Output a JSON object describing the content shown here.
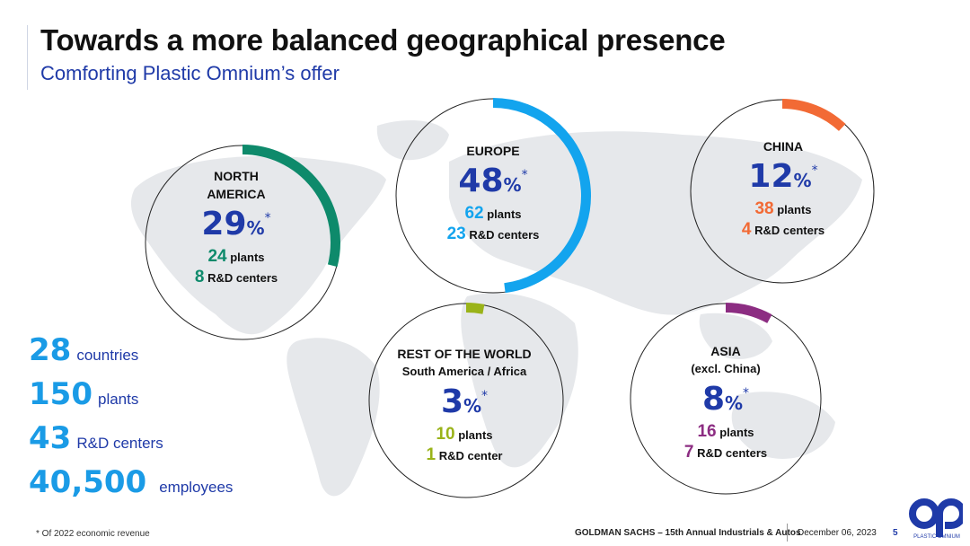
{
  "header": {
    "title": "Towards a more balanced geographical presence",
    "subtitle": "Comforting Plastic Omnium’s offer"
  },
  "colors": {
    "brand_blue": "#1f3aa8",
    "light_blue": "#1a9be6",
    "north_america": "#0e8a6b",
    "europe": "#13a4ee",
    "china": "#f26a35",
    "asia": "#8c2d82",
    "rest_of_world": "#9ab319"
  },
  "regions": [
    {
      "key": "north_america",
      "name_line1": "NORTH",
      "name_line2": "AMERICA",
      "pct": "29",
      "pct_unit": "%",
      "star": "*",
      "revenue_share": 29,
      "plants_value": "24",
      "plants_label": "plants",
      "rd_value": "8",
      "rd_label": "R&D centers"
    },
    {
      "key": "europe",
      "name_line1": "EUROPE",
      "pct": "48",
      "pct_unit": "%",
      "star": "*",
      "revenue_share": 48,
      "plants_value": "62",
      "plants_label": "plants",
      "rd_value": "23",
      "rd_label": "R&D centers"
    },
    {
      "key": "china",
      "name_line1": "CHINA",
      "pct": "12",
      "pct_unit": "%",
      "star": "*",
      "revenue_share": 12,
      "plants_value": "38",
      "plants_label": "plants",
      "rd_value": "4",
      "rd_label": "R&D centers"
    },
    {
      "key": "rest_of_world",
      "name_line1": "REST OF THE WORLD",
      "name_line2": "South America / Africa",
      "pct": "3",
      "pct_unit": "%",
      "star": "*",
      "revenue_share": 3,
      "plants_value": "10",
      "plants_label": "plants",
      "rd_value": "1",
      "rd_label": "R&D center"
    },
    {
      "key": "asia",
      "name_line1": "ASIA",
      "name_line2": "(excl. China)",
      "pct": "8",
      "pct_unit": "%",
      "star": "*",
      "revenue_share": 8,
      "plants_value": "16",
      "plants_label": "plants",
      "rd_value": "7",
      "rd_label": "R&D centers"
    }
  ],
  "totals": [
    {
      "value": "28",
      "label": "countries"
    },
    {
      "value": "150",
      "label": "plants"
    },
    {
      "value": "43",
      "label": "R&D centers"
    },
    {
      "value": "40,500",
      "label": "employees"
    }
  ],
  "footer": {
    "footnote": "* Of 2022 economic revenue",
    "event": "GOLDMAN SACHS – 15th Annual Industrials & Autos",
    "date": "December 06, 2023",
    "page": "5",
    "logo_text": "PLASTIC OMNIUM"
  }
}
